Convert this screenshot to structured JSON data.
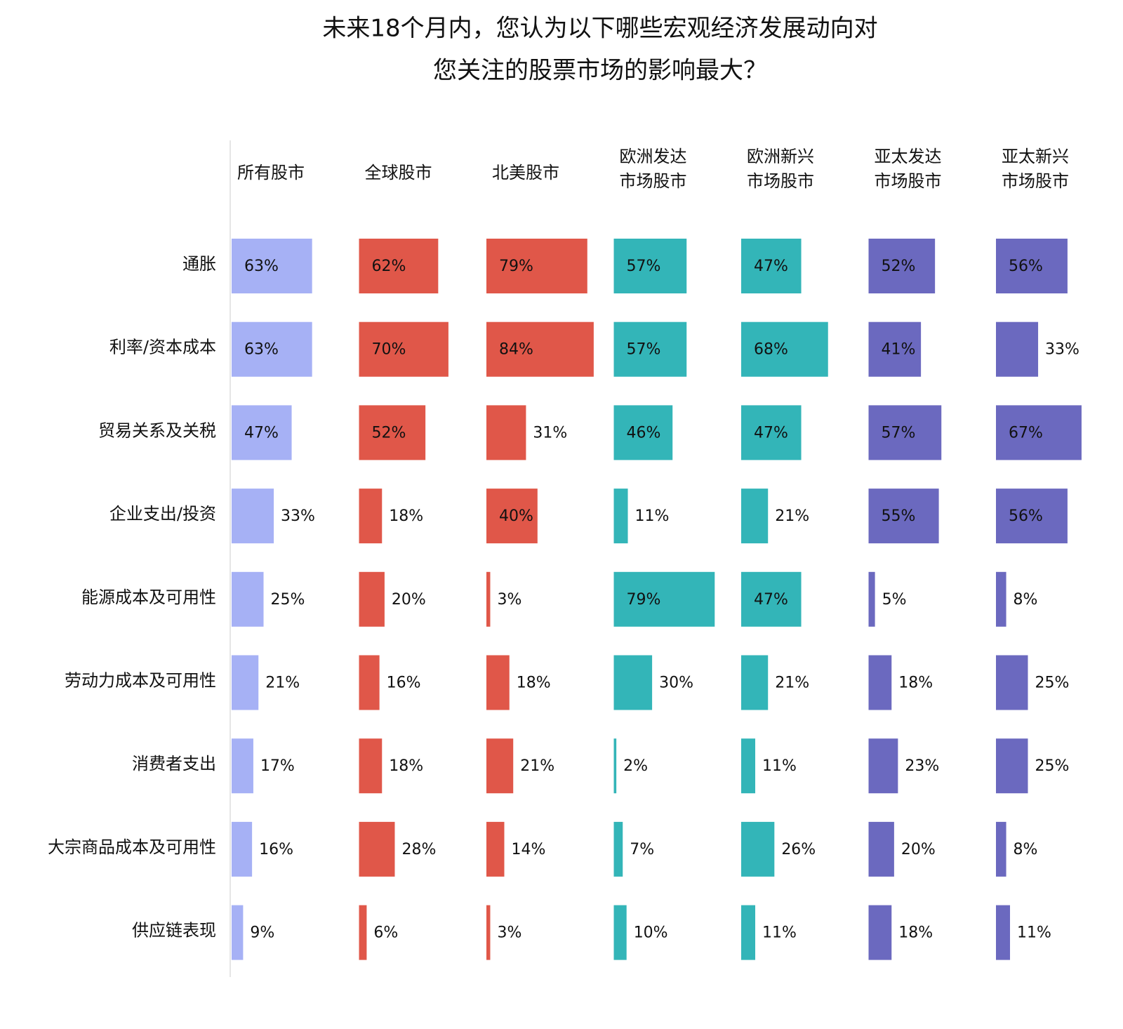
{
  "chart_data": {
    "type": "bar",
    "title": [
      "未来18个月内，您认为以下哪些宏观经济发展动向对",
      "您关注的股票市场的影响最大？"
    ],
    "categories": [
      "通胀",
      "利率/资本成本",
      "贸易关系及关税",
      "企业支出/投资",
      "能源成本及可用性",
      "劳动力成本及可用性",
      "消费者支出",
      "大宗商品成本及可用性",
      "供应链表现"
    ],
    "series": [
      {
        "name": "所有股市",
        "color": "#a6b1f5",
        "values": [
          63,
          63,
          47,
          33,
          25,
          21,
          17,
          16,
          9
        ],
        "value_labels": [
          "63%",
          "63%",
          "47%",
          "33%",
          "25%",
          "21%",
          "17%",
          "16%",
          "9%"
        ]
      },
      {
        "name": "全球股市",
        "color": "#e05749",
        "values": [
          62,
          70,
          52,
          18,
          20,
          16,
          18,
          28,
          6
        ],
        "value_labels": [
          "62%",
          "70%",
          "52%",
          "18%",
          "20%",
          "16%",
          "18%",
          "28%",
          "6%"
        ]
      },
      {
        "name": "北美股市",
        "color": "#e05749",
        "values": [
          79,
          84,
          31,
          40,
          3,
          18,
          21,
          14,
          3
        ],
        "value_labels": [
          "79%",
          "84%",
          "31%",
          "40%",
          "3%",
          "18%",
          "21%",
          "14%",
          "3%"
        ]
      },
      {
        "name": "欧洲发达\n市场股市",
        "color": "#33b5b8",
        "values": [
          57,
          57,
          46,
          11,
          79,
          30,
          2,
          7,
          10
        ],
        "value_labels": [
          "57%",
          "57%",
          "46%",
          "11%",
          "79%",
          "30%",
          "2%",
          "7%",
          "10%"
        ]
      },
      {
        "name": "欧洲新兴\n市场股市",
        "color": "#33b5b8",
        "values": [
          47,
          68,
          47,
          21,
          47,
          21,
          11,
          26,
          11
        ],
        "value_labels": [
          "47%",
          "68%",
          "47%",
          "21%",
          "47%",
          "21%",
          "11%",
          "26%",
          "11%"
        ]
      },
      {
        "name": "亚太发达\n市场股市",
        "color": "#6b69bf",
        "values": [
          52,
          41,
          57,
          55,
          5,
          18,
          23,
          20,
          18
        ],
        "value_labels": [
          "52%",
          "41%",
          "57%",
          "55%",
          "5%",
          "18%",
          "23%",
          "20%",
          "18%"
        ]
      },
      {
        "name": "亚太新兴\n市场股市",
        "color": "#6b69bf",
        "values": [
          56,
          33,
          67,
          56,
          8,
          25,
          25,
          8,
          11
        ],
        "value_labels": [
          "56%",
          "33%",
          "67%",
          "56%",
          "8%",
          "25%",
          "25%",
          "8%",
          "11%"
        ]
      }
    ]
  }
}
